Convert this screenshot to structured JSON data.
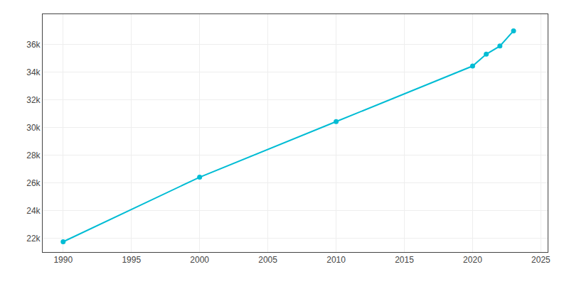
{
  "chart_data": {
    "type": "line",
    "x": [
      1990,
      2000,
      2010,
      2020,
      2021,
      2022,
      2023
    ],
    "values": [
      21744,
      26413,
      30435,
      34451,
      35308,
      35897,
      36996
    ],
    "color": "#00bcd4",
    "marker": "circle",
    "xlim": [
      1988.5,
      2025.5
    ],
    "ylim": [
      21000,
      38200
    ],
    "xticks": [
      1990,
      1995,
      2000,
      2005,
      2010,
      2015,
      2020,
      2025
    ],
    "yticks": [
      {
        "value": 22000,
        "label": "22k"
      },
      {
        "value": 24000,
        "label": "24k"
      },
      {
        "value": 26000,
        "label": "26k"
      },
      {
        "value": 28000,
        "label": "28k"
      },
      {
        "value": 30000,
        "label": "30k"
      },
      {
        "value": 32000,
        "label": "32k"
      },
      {
        "value": 34000,
        "label": "34k"
      },
      {
        "value": 36000,
        "label": "36k"
      }
    ],
    "grid": true
  }
}
